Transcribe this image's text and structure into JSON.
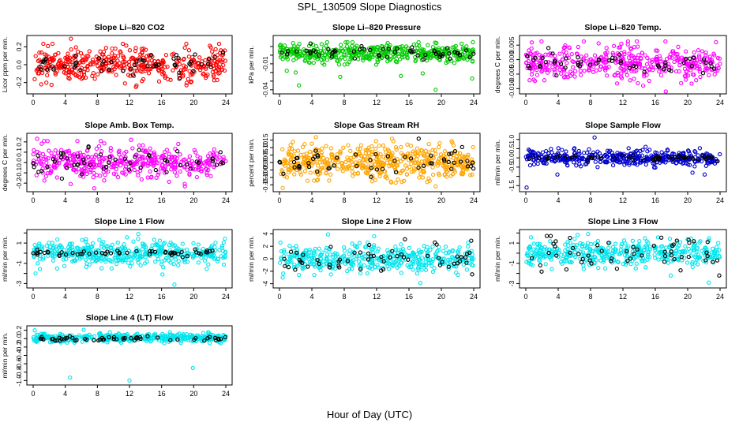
{
  "page": {
    "title": "SPL_130509  Slope Diagnostics",
    "xlabel": "Hour of Day (UTC)"
  },
  "chart_data": [
    {
      "type": "scatter",
      "title": "Slope Li–820 CO2",
      "ylabel": "Licor ppm per min.",
      "xlim": [
        0,
        24
      ],
      "xticks": [
        "0",
        "4",
        "8",
        "12",
        "16",
        "20",
        "24"
      ],
      "ylim": [
        -0.3,
        0.3
      ],
      "yticks": [
        -0.2,
        0.0,
        0.2
      ],
      "ytick_labels": [
        "-0.2",
        "0.0",
        "0.2"
      ],
      "series": [
        {
          "color": "#ff0000",
          "spread": 0.09,
          "center": 0.0,
          "count": 420,
          "outliers": [
            [
              4.7,
              0.29
            ],
            [
              12.8,
              -0.25
            ],
            [
              19.1,
              -0.23
            ],
            [
              1.0,
              -0.22
            ]
          ]
        },
        {
          "color": "#000000",
          "spread": 0.06,
          "center": 0.0,
          "count": 55,
          "outliers": []
        }
      ]
    },
    {
      "type": "scatter",
      "title": "Slope Li–820 Pressure",
      "ylabel": "kPa per min.",
      "xlim": [
        0,
        24
      ],
      "xticks": [
        "0",
        "4",
        "8",
        "12",
        "16",
        "20",
        "24"
      ],
      "ylim": [
        -0.042,
        0.02
      ],
      "yticks": [
        -0.04,
        -0.03,
        -0.02,
        -0.01,
        0.0,
        0.01
      ],
      "ytick_labels": [
        "-0.04",
        "",
        "",
        "-0.01",
        "",
        ""
      ],
      "series": [
        {
          "color": "#00cc00",
          "spread": 0.005,
          "center": 0.002,
          "count": 440,
          "outliers": [
            [
              0.9,
              -0.018
            ],
            [
              2.4,
              -0.035
            ],
            [
              7.5,
              -0.025
            ],
            [
              15.0,
              -0.024
            ],
            [
              17.7,
              -0.021
            ],
            [
              19.3,
              -0.04
            ],
            [
              23.8,
              -0.027
            ],
            [
              2.0,
              -0.02
            ]
          ]
        },
        {
          "color": "#000000",
          "spread": 0.004,
          "center": 0.003,
          "count": 55,
          "outliers": []
        }
      ]
    },
    {
      "type": "scatter",
      "title": "Slope Li–820 Temp.",
      "ylabel": "degrees C per min.",
      "xlim": [
        0,
        24
      ],
      "xticks": [
        "0",
        "4",
        "8",
        "12",
        "16",
        "20",
        "24"
      ],
      "ylim": [
        -0.011,
        0.0075
      ],
      "yticks": [
        -0.01,
        -0.005,
        0.0,
        0.005
      ],
      "ytick_labels": [
        "-0.010",
        "-0.005",
        "0.000",
        "0.005"
      ],
      "series": [
        {
          "color": "#ff00ff",
          "spread": 0.0028,
          "center": -0.001,
          "count": 420,
          "outliers": [
            [
              11.8,
              0.0055
            ],
            [
              14.5,
              -0.009
            ],
            [
              17.3,
              -0.011
            ],
            [
              23.5,
              0.006
            ]
          ]
        },
        {
          "color": "#000000",
          "spread": 0.002,
          "center": -0.001,
          "count": 55,
          "outliers": []
        }
      ]
    },
    {
      "type": "scatter",
      "title": "Slope Amb. Box Temp.",
      "ylabel": "degrees C per min.",
      "xlim": [
        0,
        24
      ],
      "xticks": [
        "0",
        "4",
        "8",
        "12",
        "16",
        "20",
        "24"
      ],
      "ylim": [
        -0.26,
        0.26
      ],
      "yticks": [
        -0.2,
        -0.1,
        0.0,
        0.1,
        0.2
      ],
      "ytick_labels": [
        "-0.2",
        "-0.1",
        "0.0",
        "0.1",
        "0.2"
      ],
      "series": [
        {
          "color": "#ff00ff",
          "spread": 0.08,
          "center": 0.0,
          "count": 420,
          "outliers": [
            [
              0.5,
              0.23
            ],
            [
              7.6,
              -0.25
            ],
            [
              12.2,
              0.22
            ],
            [
              18.9,
              -0.23
            ]
          ]
        },
        {
          "color": "#000000",
          "spread": 0.06,
          "center": 0.0,
          "count": 55,
          "outliers": []
        }
      ]
    },
    {
      "type": "scatter",
      "title": "Slope Gas Stream RH",
      "ylabel": "percent per min.",
      "xlim": [
        0,
        24
      ],
      "xticks": [
        "0",
        "4",
        "8",
        "12",
        "16",
        "20",
        "24"
      ],
      "ylim": [
        -0.18,
        0.18
      ],
      "yticks": [
        -0.15,
        -0.1,
        -0.05,
        0.0,
        0.05,
        0.1,
        0.15
      ],
      "ytick_labels": [
        "-0.15",
        "-0.10",
        "-0.05",
        "0.00",
        "0.05",
        "0.10",
        "0.15"
      ],
      "series": [
        {
          "color": "#ffa500",
          "spread": 0.055,
          "center": 0.0,
          "count": 520,
          "outliers": [
            [
              0.4,
              -0.17
            ],
            [
              4.5,
              0.17
            ],
            [
              13.9,
              0.16
            ],
            [
              19.3,
              -0.16
            ]
          ]
        },
        {
          "color": "#000000",
          "spread": 0.04,
          "center": 0.0,
          "count": 55,
          "outliers": [
            [
              17.2,
              0.16
            ]
          ]
        }
      ]
    },
    {
      "type": "scatter",
      "title": "Slope Sample Flow",
      "ylabel": "ml/min per min.",
      "xlim": [
        0,
        24
      ],
      "xticks": [
        "0",
        "4",
        "8",
        "12",
        "16",
        "20",
        "24"
      ],
      "ylim": [
        -1.7,
        1.2
      ],
      "yticks": [
        -1.5,
        -1.0,
        -0.5,
        0.0,
        0.5,
        1.0
      ],
      "ytick_labels": [
        "-1.5",
        "",
        "-0.5",
        "0.0",
        "0.5",
        "1.0"
      ],
      "series": [
        {
          "color": "#0000cc",
          "spread": 0.2,
          "center": 0.0,
          "count": 420,
          "outliers": [
            [
              0.1,
              -1.6
            ],
            [
              8.5,
              1.1
            ],
            [
              3.9,
              -0.9
            ],
            [
              20.6,
              -0.8
            ],
            [
              22.1,
              -0.9
            ],
            [
              14.8,
              0.6
            ]
          ]
        },
        {
          "color": "#000000",
          "spread": 0.08,
          "center": 0.0,
          "count": 55,
          "outliers": []
        }
      ]
    },
    {
      "type": "scatter",
      "title": "Slope Line 1 Flow",
      "ylabel": "ml/min per min.",
      "xlim": [
        0,
        24
      ],
      "xticks": [
        "0",
        "4",
        "8",
        "12",
        "16",
        "20",
        "24"
      ],
      "ylim": [
        -3.2,
        2.1
      ],
      "yticks": [
        -3,
        -2,
        -1,
        0,
        1,
        2
      ],
      "ytick_labels": [
        "-3",
        "",
        "-1",
        "",
        "1",
        ""
      ],
      "series": [
        {
          "color": "#00e5ee",
          "spread": 0.6,
          "center": 0.0,
          "count": 420,
          "outliers": [
            [
              13.1,
              1.9
            ],
            [
              17.6,
              -3.1
            ],
            [
              0.3,
              -2.0
            ],
            [
              16.1,
              -2.1
            ]
          ]
        },
        {
          "color": "#000000",
          "spread": 0.15,
          "center": 0.0,
          "count": 55,
          "outliers": []
        }
      ]
    },
    {
      "type": "scatter",
      "title": "Slope Line 2 Flow",
      "ylabel": "ml/min per min.",
      "xlim": [
        0,
        24
      ],
      "xticks": [
        "0",
        "4",
        "8",
        "12",
        "16",
        "20",
        "24"
      ],
      "ylim": [
        -4.3,
        4.3
      ],
      "yticks": [
        -4,
        -2,
        0,
        2,
        4
      ],
      "ytick_labels": [
        "-4",
        "-2",
        "0",
        "2",
        "4"
      ],
      "series": [
        {
          "color": "#00e5ee",
          "spread": 1.0,
          "center": 0.0,
          "count": 420,
          "outliers": [
            [
              6.0,
              3.9
            ],
            [
              17.4,
              -3.9
            ],
            [
              11.7,
              3.6
            ],
            [
              0.4,
              -3.0
            ]
          ]
        },
        {
          "color": "#000000",
          "spread": 1.2,
          "center": 0.0,
          "count": 55,
          "outliers": [
            [
              23.7,
              2.9
            ],
            [
              23.8,
              -2.5
            ],
            [
              19.2,
              2.6
            ]
          ]
        }
      ]
    },
    {
      "type": "scatter",
      "title": "Slope Line 3 Flow",
      "ylabel": "ml/min per min.",
      "xlim": [
        0,
        24
      ],
      "xticks": [
        "0",
        "4",
        "8",
        "12",
        "16",
        "20",
        "24"
      ],
      "ylim": [
        -3.2,
        2.1
      ],
      "yticks": [
        -3,
        -2,
        -1,
        0,
        1,
        2
      ],
      "ytick_labels": [
        "-3",
        "",
        "-1",
        "",
        "1",
        ""
      ],
      "series": [
        {
          "color": "#00e5ee",
          "spread": 0.6,
          "center": 0.0,
          "count": 420,
          "outliers": [
            [
              7.7,
              1.9
            ],
            [
              22.6,
              -2.9
            ],
            [
              17.9,
              -2.2
            ],
            [
              6.4,
              1.8
            ]
          ]
        },
        {
          "color": "#000000",
          "spread": 0.7,
          "center": 0.0,
          "count": 55,
          "outliers": [
            [
              23.9,
              -2.2
            ],
            [
              2.6,
              1.7
            ]
          ]
        }
      ]
    },
    {
      "type": "scatter",
      "title": "Slope Line 4 (LT) Flow",
      "ylabel": "ml/min per min.",
      "xlim": [
        0,
        24
      ],
      "xticks": [
        "0",
        "4",
        "8",
        "12",
        "16",
        "20",
        "24"
      ],
      "ylim": [
        -1.05,
        0.25
      ],
      "yticks": [
        -1.0,
        -0.8,
        -0.6,
        -0.4,
        -0.2,
        0.0,
        0.2
      ],
      "ytick_labels": [
        "-1.0",
        "-0.8",
        "-0.6",
        "-0.4",
        "-0.2",
        "0.0",
        "0.2"
      ],
      "series": [
        {
          "color": "#00e5ee",
          "spread": 0.05,
          "center": 0.02,
          "count": 420,
          "outliers": [
            [
              0.2,
              0.2
            ],
            [
              4.6,
              -0.93
            ],
            [
              12.0,
              -1.0
            ],
            [
              19.9,
              -0.7
            ],
            [
              6.3,
              0.21
            ]
          ]
        },
        {
          "color": "#000000",
          "spread": 0.035,
          "center": 0.0,
          "count": 55,
          "outliers": []
        }
      ]
    }
  ]
}
